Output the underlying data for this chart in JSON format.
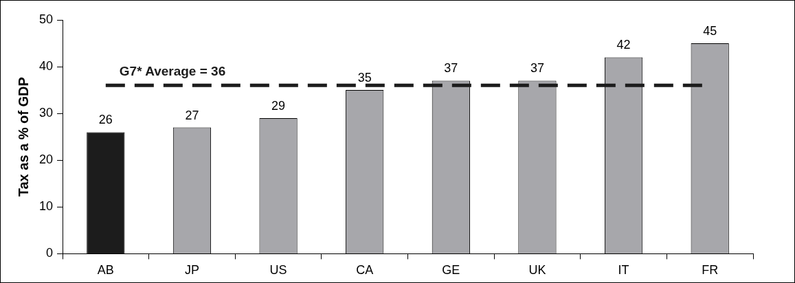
{
  "chart_data": {
    "type": "bar",
    "ylabel": "Tax as a % of GDP",
    "categories": [
      "AB",
      "JP",
      "US",
      "CA",
      "GE",
      "UK",
      "IT",
      "FR"
    ],
    "values": [
      26,
      27,
      29,
      35,
      37,
      37,
      42,
      45
    ],
    "colors": [
      "#1c1c1c",
      "#a7a7ab",
      "#a7a7ab",
      "#a7a7ab",
      "#a7a7ab",
      "#a7a7ab",
      "#a7a7ab",
      "#a7a7ab"
    ],
    "ylim": [
      0,
      50
    ],
    "yticks": [
      0,
      10,
      20,
      30,
      40,
      50
    ],
    "grid": false,
    "legend": false,
    "data_labels": true,
    "ref_lines": [
      {
        "axis": "y",
        "value": 36,
        "label": "G7* Average = 36",
        "color": "#1c1c1c",
        "line_style": "dashed"
      }
    ]
  }
}
